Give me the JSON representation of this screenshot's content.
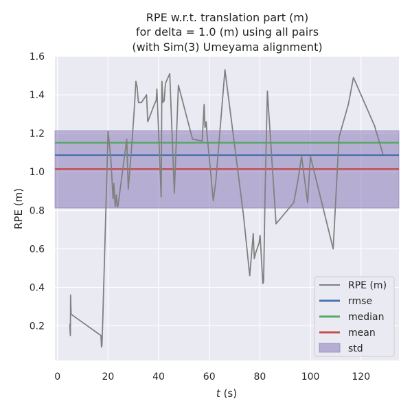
{
  "chart_data": {
    "type": "line",
    "title_lines": [
      "RPE w.r.t. translation part (m)",
      "for delta = 1.0 (m) using all pairs",
      "(with Sim(3) Umeyama alignment)"
    ],
    "xlabel_var": "t",
    "xlabel_unit": " (s)",
    "ylabel": "RPE (m)",
    "xlim": [
      -1,
      135
    ],
    "ylim": [
      0.02,
      1.6
    ],
    "xticks": [
      0,
      20,
      40,
      60,
      80,
      100,
      120
    ],
    "yticks": [
      0.2,
      0.4,
      0.6,
      0.8,
      1.0,
      1.2,
      1.4,
      1.6
    ],
    "ytick_labels": [
      "0.2",
      "0.4",
      "0.6",
      "0.8",
      "1.0",
      "1.2",
      "1.4",
      "1.6"
    ],
    "grid": true,
    "legend_position": "lower-right",
    "background_color": "#eaeaf2",
    "series": [
      {
        "name": "RPE (m)",
        "color": "#808080",
        "x": [
          4.9,
          5.0,
          5.1,
          5.2,
          5.3,
          5.4,
          17.2,
          17.4,
          17.6,
          17.9,
          20.0,
          21.1,
          22.0,
          22.3,
          22.8,
          23.3,
          23.6,
          23.9,
          27.4,
          28.0,
          29.5,
          30.5,
          31.0,
          31.5,
          32.0,
          32.5,
          33.2,
          34.2,
          35.2,
          35.7,
          38.3,
          39.0,
          39.3,
          41.0,
          41.3,
          41.7,
          42.2,
          42.7,
          44.4,
          46.2,
          47.8,
          53.4,
          57.2,
          58.0,
          58.3,
          58.8,
          59.1,
          61.6,
          62.6,
          66.2,
          73.5,
          76.0,
          77.4,
          77.8,
          78.4,
          79.7,
          80.1,
          81.2,
          81.5,
          82.1,
          83.0,
          86.4,
          93.4,
          95.0,
          96.5,
          98.9,
          100.0,
          109.0,
          111.3,
          115.0,
          117.0,
          125.3,
          128.7
        ],
        "y": [
          0.21,
          0.17,
          0.15,
          0.36,
          0.3,
          0.26,
          0.15,
          0.09,
          0.1,
          0.22,
          1.21,
          1.07,
          0.86,
          0.94,
          0.82,
          0.88,
          0.82,
          0.82,
          1.17,
          0.91,
          1.16,
          1.35,
          1.47,
          1.44,
          1.36,
          1.36,
          1.36,
          1.38,
          1.4,
          1.26,
          1.35,
          1.37,
          1.43,
          0.87,
          1.47,
          1.36,
          1.37,
          1.46,
          1.51,
          0.89,
          1.45,
          1.17,
          1.16,
          1.35,
          1.23,
          1.26,
          1.2,
          0.85,
          0.95,
          1.53,
          0.78,
          0.46,
          0.68,
          0.55,
          0.58,
          0.63,
          0.67,
          0.42,
          0.43,
          0.9,
          1.42,
          0.73,
          0.84,
          0.95,
          1.08,
          0.84,
          1.08,
          0.6,
          1.18,
          1.35,
          1.49,
          1.24,
          1.09
        ]
      },
      {
        "name": "rmse",
        "color": "#4c72b0",
        "value": 1.087
      },
      {
        "name": "median",
        "color": "#55a868",
        "value": 1.151
      },
      {
        "name": "mean",
        "color": "#c44e52",
        "value": 1.014
      },
      {
        "name": "std",
        "color": "#8172b2",
        "band": [
          0.812,
          1.213
        ]
      }
    ]
  }
}
